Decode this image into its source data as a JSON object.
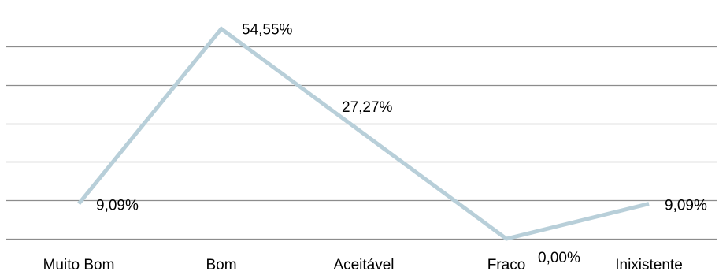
{
  "chart_data": {
    "type": "line",
    "categories": [
      "Muito Bom",
      "Bom",
      "Aceitável",
      "Fraco",
      "Inixistente"
    ],
    "values": [
      9.09,
      54.55,
      27.27,
      0.0,
      9.09
    ],
    "data_labels": [
      "9,09%",
      "54,55%",
      "27,27%",
      "0,00%",
      "9,09%"
    ],
    "title": "",
    "xlabel": "",
    "ylabel": "",
    "ylim": [
      0,
      60
    ],
    "grid": true,
    "legend": "none",
    "colors": {
      "line": "#b8cfd9",
      "grid": "#8c8c8c",
      "text": "#000000"
    }
  }
}
